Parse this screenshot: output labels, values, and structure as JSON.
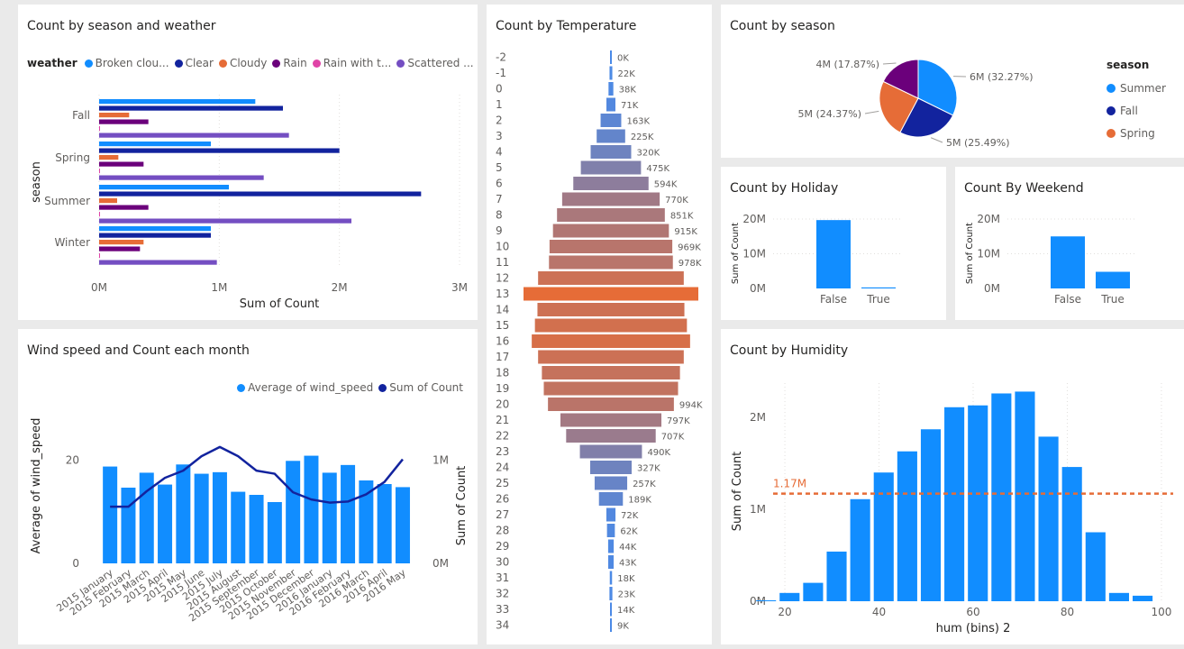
{
  "panels": {
    "season_weather": {
      "title": "Count by season and weather"
    },
    "temperature": {
      "title": "Count by Temperature"
    },
    "season": {
      "title": "Count by season"
    },
    "holiday": {
      "title": "Count by Holiday"
    },
    "weekend": {
      "title": "Count By Weekend"
    },
    "wind": {
      "title": "Wind speed and Count each month"
    },
    "humidity": {
      "title": "Count by Humidity"
    }
  },
  "legend_sw": {
    "title": "weather",
    "items": [
      {
        "label": "Broken clou...",
        "color": "#118dff"
      },
      {
        "label": "Clear",
        "color": "#12239e"
      },
      {
        "label": "Cloudy",
        "color": "#e66c37"
      },
      {
        "label": "Rain",
        "color": "#6b007b"
      },
      {
        "label": "Rain with t...",
        "color": "#e044a7"
      },
      {
        "label": "Scattered ...",
        "color": "#744ec2"
      }
    ]
  },
  "legend_season": {
    "title": "season",
    "items": [
      {
        "label": "Summer",
        "color": "#118dff"
      },
      {
        "label": "Fall",
        "color": "#12239e"
      },
      {
        "label": "Spring",
        "color": "#e66c37"
      }
    ]
  },
  "legend_wind": {
    "items": [
      {
        "label": "Average of wind_speed",
        "color": "#118dff"
      },
      {
        "label": "Sum of Count",
        "color": "#12239e"
      }
    ]
  },
  "chart_data": [
    {
      "id": "season_weather",
      "type": "bar",
      "orientation": "horizontal",
      "title": "Count by season and weather",
      "categories": [
        "Fall",
        "Spring",
        "Summer",
        "Winter"
      ],
      "xlabel": "Sum of Count",
      "ylabel": "season",
      "xlim": [
        0,
        3000000
      ],
      "xticks": [
        "0M",
        "1M",
        "2M",
        "3M"
      ],
      "series": [
        {
          "name": "Broken clou...",
          "color": "#118dff",
          "values": [
            1300000,
            930000,
            1080000,
            930000
          ]
        },
        {
          "name": "Clear",
          "color": "#12239e",
          "values": [
            1530000,
            2000000,
            2680000,
            930000
          ]
        },
        {
          "name": "Cloudy",
          "color": "#e66c37",
          "values": [
            250000,
            160000,
            150000,
            370000
          ]
        },
        {
          "name": "Rain",
          "color": "#6b007b",
          "values": [
            410000,
            370000,
            410000,
            340000
          ]
        },
        {
          "name": "Rain with t...",
          "color": "#e044a7",
          "values": [
            5000,
            5000,
            5000,
            5000
          ]
        },
        {
          "name": "Scattered ...",
          "color": "#744ec2",
          "values": [
            1580000,
            1370000,
            2100000,
            980000
          ]
        }
      ]
    },
    {
      "id": "temperature",
      "type": "bar",
      "orientation": "horizontal-centered",
      "title": "Count by Temperature",
      "categories": [
        "-2",
        "-1",
        "0",
        "1",
        "2",
        "3",
        "4",
        "5",
        "6",
        "7",
        "8",
        "9",
        "10",
        "11",
        "12",
        "13",
        "14",
        "15",
        "16",
        "17",
        "18",
        "19",
        "20",
        "21",
        "22",
        "23",
        "24",
        "25",
        "26",
        "27",
        "28",
        "29",
        "30",
        "31",
        "32",
        "33",
        "34"
      ],
      "values": [
        500,
        22000,
        38000,
        71000,
        163000,
        225000,
        320000,
        475000,
        594000,
        770000,
        851000,
        915000,
        969000,
        978000,
        1150000,
        1380000,
        1160000,
        1200000,
        1250000,
        1150000,
        1090000,
        1060000,
        994000,
        797000,
        707000,
        490000,
        327000,
        257000,
        189000,
        72000,
        62000,
        44000,
        43000,
        18000,
        23000,
        14000,
        9000
      ],
      "data_labels": [
        "0K",
        "22K",
        "38K",
        "71K",
        "163K",
        "225K",
        "320K",
        "475K",
        "594K",
        "770K",
        "851K",
        "915K",
        "969K",
        "978K",
        "",
        "",
        "",
        "",
        "",
        "",
        "",
        "",
        "994K",
        "797K",
        "707K",
        "490K",
        "327K",
        "257K",
        "189K",
        "72K",
        "62K",
        "44K",
        "43K",
        "18K",
        "23K",
        "14K",
        "9K"
      ]
    },
    {
      "id": "season",
      "type": "pie",
      "title": "Count by season",
      "slices": [
        {
          "label": "Summer",
          "value": 32.27,
          "data_label": "6M (32.27%)",
          "color": "#118dff"
        },
        {
          "label": "Fall",
          "value": 25.49,
          "data_label": "5M (25.49%)",
          "color": "#12239e"
        },
        {
          "label": "Spring",
          "value": 24.37,
          "data_label": "5M (24.37%)",
          "color": "#e66c37"
        },
        {
          "label": "",
          "value": 17.87,
          "data_label": "4M (17.87%)",
          "color": "#6b007b"
        }
      ]
    },
    {
      "id": "holiday",
      "type": "bar",
      "title": "Count by Holiday",
      "categories": [
        "False",
        "True"
      ],
      "values": [
        19700000,
        300000
      ],
      "ylabel": "Sum of Count",
      "ylim": [
        0,
        20000000
      ],
      "yticks": [
        "0M",
        "10M",
        "20M"
      ]
    },
    {
      "id": "weekend",
      "type": "bar",
      "title": "Count By Weekend",
      "categories": [
        "False",
        "True"
      ],
      "values": [
        15000000,
        4800000
      ],
      "ylabel": "Sum of Count",
      "ylim": [
        0,
        20000000
      ],
      "yticks": [
        "0M",
        "10M",
        "20M"
      ]
    },
    {
      "id": "wind",
      "type": "bar",
      "title": "Wind speed and Count each month",
      "categories": [
        "2015 January",
        "2015 February",
        "2015 March",
        "2015 April",
        "2015 May",
        "2015 June",
        "2015 July",
        "2015 August",
        "2015 September",
        "2015 October",
        "2015 November",
        "2015 December",
        "2016 January",
        "2016 February",
        "2016 March",
        "2016 April",
        "2016 May"
      ],
      "series": [
        {
          "name": "Average of wind_speed",
          "type": "bar",
          "axis": "left",
          "values": [
            18.8,
            14.7,
            17.6,
            15.3,
            19.2,
            17.4,
            17.7,
            13.9,
            13.3,
            11.9,
            19.9,
            20.9,
            17.6,
            19.1,
            16.1,
            15.4,
            14.8
          ]
        },
        {
          "name": "Sum of Count",
          "type": "line",
          "axis": "right",
          "values": [
            550000,
            550000,
            700000,
            830000,
            900000,
            1040000,
            1130000,
            1040000,
            900000,
            870000,
            690000,
            620000,
            590000,
            600000,
            670000,
            790000,
            1010000
          ]
        }
      ],
      "ylabel": "Average of wind_speed",
      "y2label": "Sum of Count",
      "ylim": [
        0,
        28
      ],
      "y2lim": [
        0,
        1400000
      ],
      "yticks": [
        "0",
        "20"
      ],
      "y2ticks": [
        "0M",
        "1M"
      ]
    },
    {
      "id": "humidity",
      "type": "bar",
      "title": "Count by Humidity",
      "x": [
        16,
        21,
        26,
        31,
        36,
        41,
        46,
        51,
        56,
        61,
        66,
        71,
        76,
        81,
        86,
        91,
        96,
        101
      ],
      "values": [
        10000,
        90000,
        200000,
        540000,
        1110000,
        1400000,
        1630000,
        1870000,
        2110000,
        2130000,
        2260000,
        2280000,
        1790000,
        1460000,
        750000,
        90000,
        60000,
        0
      ],
      "xlabel": "hum (bins) 2",
      "ylabel": "Sum of Count",
      "xlim": [
        17.5,
        102.5
      ],
      "ylim": [
        0,
        2500000
      ],
      "xticks": [
        "20",
        "40",
        "60",
        "80",
        "100"
      ],
      "yticks": [
        "0M",
        "1M",
        "2M"
      ],
      "average_line": {
        "value": 1170000,
        "label": "1.17M",
        "color": "#e66c37"
      }
    }
  ]
}
